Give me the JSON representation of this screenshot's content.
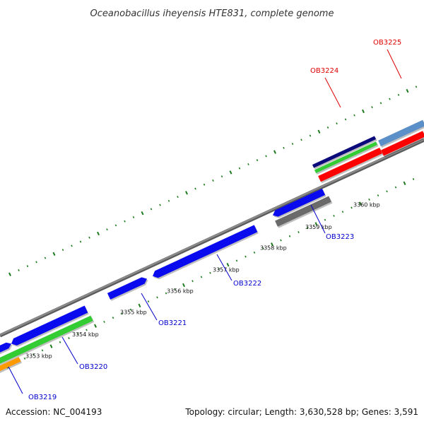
{
  "title": "Oceanobacillus iheyensis HTE831, complete genome",
  "footer": {
    "accession": "Accession: NC_004193",
    "summary": "Topology: circular; Length: 3,630,528 bp; Genes: 3,591"
  },
  "colors": {
    "backbone": "#8a8a8a",
    "tick": "#1e7a1e",
    "gene_blue": "#0a0aee",
    "gene_red": "#ff0000",
    "gene_green": "#33cc33",
    "gene_navy": "#0a0a7a",
    "gene_steelblue": "#5b8fc7",
    "gene_gray": "#6a6a6a",
    "gene_orange": "#ff9900",
    "label_blue": "#0000cc",
    "label_red": "#dd0000"
  },
  "scale": {
    "unit": "kbp",
    "ticks": [
      {
        "label": "3353 kbp"
      },
      {
        "label": "3354 kbp"
      },
      {
        "label": "3355 kbp"
      },
      {
        "label": "3356 kbp"
      },
      {
        "label": "3357 kbp"
      },
      {
        "label": "3358 kbp"
      },
      {
        "label": "3359 kbp"
      },
      {
        "label": "3360 kbp"
      }
    ]
  },
  "gene_labels": [
    {
      "name": "OB3219",
      "color": "label_blue"
    },
    {
      "name": "OB3220",
      "color": "label_blue"
    },
    {
      "name": "OB3221",
      "color": "label_blue"
    },
    {
      "name": "OB3222",
      "color": "label_blue"
    },
    {
      "name": "OB3223",
      "color": "label_blue"
    },
    {
      "name": "OB3224",
      "color": "label_red"
    },
    {
      "name": "OB3225",
      "color": "label_red"
    }
  ]
}
